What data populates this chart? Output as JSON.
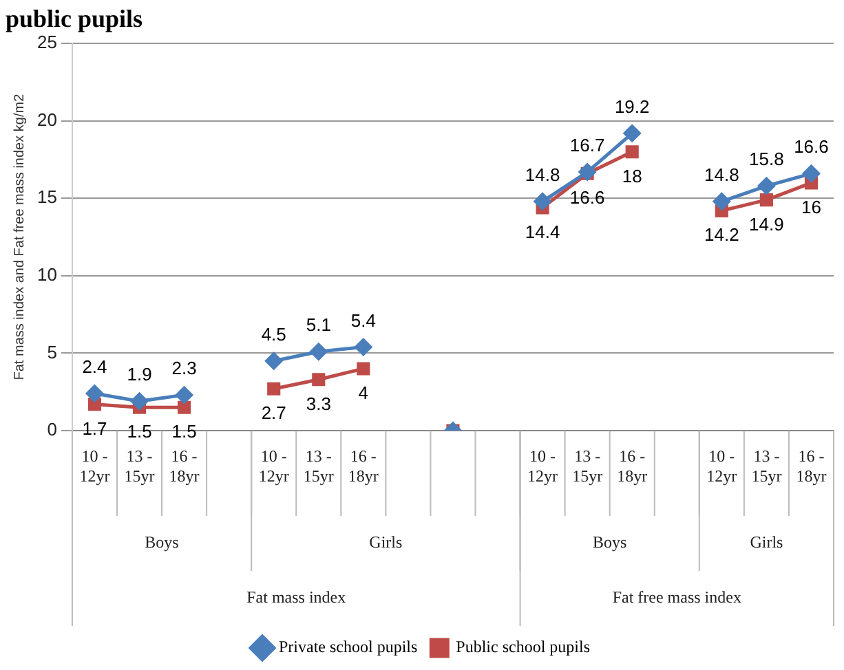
{
  "chart_data": {
    "type": "line",
    "title": "public pupils",
    "ylabel": "Fat mass index and Fat free mass index kg/m2",
    "categories": [
      "10 - 12yr",
      "13 - 15yr",
      "16 - 18yr",
      null,
      "10 - 12yr",
      "13 - 15yr",
      "16 - 18yr",
      null,
      null,
      null,
      "10 - 12yr",
      "13 - 15yr",
      "16 - 18yr",
      null,
      "10 - 12yr",
      "13 - 15yr",
      "16 - 18yr"
    ],
    "series": [
      {
        "name": "Private school pupils",
        "color": "#4a7ebb",
        "marker": "diamond",
        "values": [
          2.4,
          1.9,
          2.3,
          null,
          4.5,
          5.1,
          5.4,
          null,
          0,
          null,
          14.8,
          16.7,
          19.2,
          null,
          14.8,
          15.8,
          16.6
        ],
        "value_labels": [
          "2.4",
          "1.9",
          "2.3",
          null,
          "4.5",
          "5.1",
          "5.4",
          null,
          null,
          null,
          "14.8",
          "16.7",
          "19.2",
          null,
          "14.8",
          "15.8",
          "16.6"
        ]
      },
      {
        "name": "Public school pupils",
        "color": "#be4b48",
        "marker": "square",
        "values": [
          1.7,
          1.5,
          1.5,
          null,
          2.7,
          3.3,
          4,
          null,
          0,
          null,
          14.4,
          16.6,
          18,
          null,
          14.2,
          14.9,
          16
        ],
        "value_labels": [
          "1.7",
          "1.5",
          "1.5",
          null,
          "2.7",
          "3.3",
          "4",
          null,
          null,
          null,
          "14.4",
          "16.6",
          "18",
          null,
          "14.2",
          "14.9",
          "16"
        ]
      }
    ],
    "annotations": [
      "Boys",
      "Girls",
      "Boys",
      "Girls",
      "Fat mass index",
      "Fat free mass index"
    ],
    "ylim": [
      0,
      25
    ],
    "yticks": [
      0,
      5,
      10,
      15,
      20,
      25
    ],
    "grid": "y",
    "legend": "bottom",
    "line_style": "solid"
  }
}
